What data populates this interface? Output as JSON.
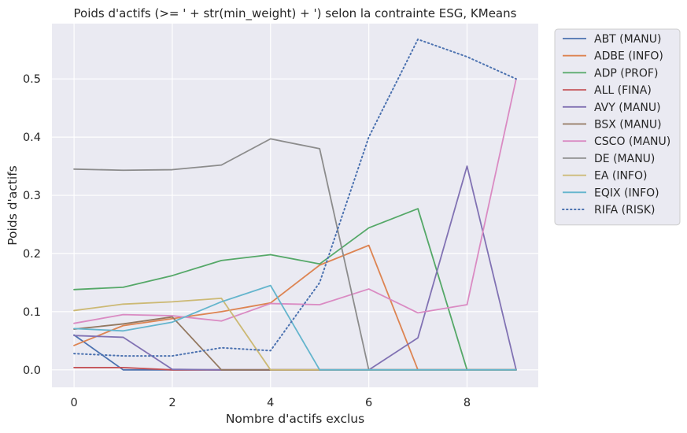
{
  "chart_data": {
    "type": "line",
    "title": "Poids d'actifs (>= ' + str(min_weight) + ') selon la contrainte ESG, KMeans",
    "xlabel": "Nombre d'actifs exclus",
    "ylabel": "Poids d'actifs",
    "xlim": [
      -0.45,
      9.45
    ],
    "ylim": [
      -0.03,
      0.595
    ],
    "xticks": [
      0,
      2,
      4,
      6,
      8
    ],
    "yticks": [
      0.0,
      0.1,
      0.2,
      0.3,
      0.4,
      0.5
    ],
    "ytick_labels": [
      "0.0",
      "0.1",
      "0.2",
      "0.3",
      "0.4",
      "0.5"
    ],
    "grid": true,
    "background": "#eaeaf2",
    "legend_position": "outside-right-top",
    "series": [
      {
        "name": "ABT (MANU)",
        "color": "#4c72b0",
        "style": "solid",
        "x": [
          0,
          1,
          2,
          3,
          4,
          5,
          6,
          7,
          8,
          9
        ],
        "y": [
          0.06,
          0.0,
          0.0,
          0.0,
          0.0,
          0.0,
          0.0,
          0.0,
          0.0,
          0.0
        ]
      },
      {
        "name": "ADBE (INFO)",
        "color": "#dd8452",
        "style": "solid",
        "x": [
          0,
          1,
          2,
          3,
          4,
          5,
          6,
          7,
          8,
          9
        ],
        "y": [
          0.042,
          0.076,
          0.088,
          0.1,
          0.115,
          0.18,
          0.214,
          0.0,
          0.0,
          0.0
        ]
      },
      {
        "name": "ADP (PROF)",
        "color": "#55a868",
        "style": "solid",
        "x": [
          0,
          1,
          2,
          3,
          4,
          5,
          6,
          7,
          8,
          9
        ],
        "y": [
          0.138,
          0.142,
          0.162,
          0.188,
          0.198,
          0.182,
          0.244,
          0.277,
          0.0,
          0.0
        ]
      },
      {
        "name": "ALL (FINA)",
        "color": "#c44e52",
        "style": "solid",
        "x": [
          0,
          1,
          2,
          3,
          4,
          5,
          6,
          7,
          8,
          9
        ],
        "y": [
          0.004,
          0.004,
          0.0,
          0.0,
          0.0,
          0.0,
          0.0,
          0.0,
          0.0,
          0.0
        ]
      },
      {
        "name": "AVY (MANU)",
        "color": "#8172b3",
        "style": "solid",
        "x": [
          0,
          1,
          2,
          3,
          4,
          5,
          6,
          7,
          8,
          9
        ],
        "y": [
          0.059,
          0.056,
          0.001,
          0.0,
          0.0,
          0.0,
          0.0,
          0.055,
          0.35,
          0.0
        ]
      },
      {
        "name": "BSX (MANU)",
        "color": "#937860",
        "style": "solid",
        "x": [
          0,
          1,
          2,
          3,
          4,
          5,
          6,
          7,
          8,
          9
        ],
        "y": [
          0.07,
          0.079,
          0.091,
          0.0,
          0.0,
          0.0,
          0.0,
          0.0,
          0.0,
          0.0
        ]
      },
      {
        "name": "CSCO (MANU)",
        "color": "#da8bc3",
        "style": "solid",
        "x": [
          0,
          1,
          2,
          3,
          4,
          5,
          6,
          7,
          8,
          9
        ],
        "y": [
          0.08,
          0.095,
          0.093,
          0.084,
          0.114,
          0.112,
          0.139,
          0.098,
          0.112,
          0.5
        ]
      },
      {
        "name": "DE (MANU)",
        "color": "#8c8c8c",
        "style": "solid",
        "x": [
          0,
          1,
          2,
          3,
          4,
          5,
          6,
          7,
          8,
          9
        ],
        "y": [
          0.345,
          0.343,
          0.344,
          0.352,
          0.397,
          0.38,
          0.0,
          0.0,
          0.0,
          0.0
        ]
      },
      {
        "name": "EA (INFO)",
        "color": "#ccb974",
        "style": "solid",
        "x": [
          0,
          1,
          2,
          3,
          4,
          5,
          6,
          7,
          8,
          9
        ],
        "y": [
          0.102,
          0.113,
          0.117,
          0.123,
          0.0,
          0.0,
          0.0,
          0.0,
          0.0,
          0.0
        ]
      },
      {
        "name": "EQIX (INFO)",
        "color": "#64b5cd",
        "style": "solid",
        "x": [
          0,
          1,
          2,
          3,
          4,
          5,
          6,
          7,
          8,
          9
        ],
        "y": [
          0.071,
          0.067,
          0.082,
          0.117,
          0.145,
          0.0,
          0.0,
          0.0,
          0.0,
          0.0
        ]
      },
      {
        "name": "RIFA (RISK)",
        "color": "#4c72b0",
        "style": "dotted",
        "x": [
          0,
          1,
          2,
          3,
          4,
          5,
          6,
          7,
          8,
          9
        ],
        "y": [
          0.028,
          0.024,
          0.024,
          0.038,
          0.033,
          0.15,
          0.4,
          0.568,
          0.538,
          0.5
        ]
      }
    ]
  }
}
